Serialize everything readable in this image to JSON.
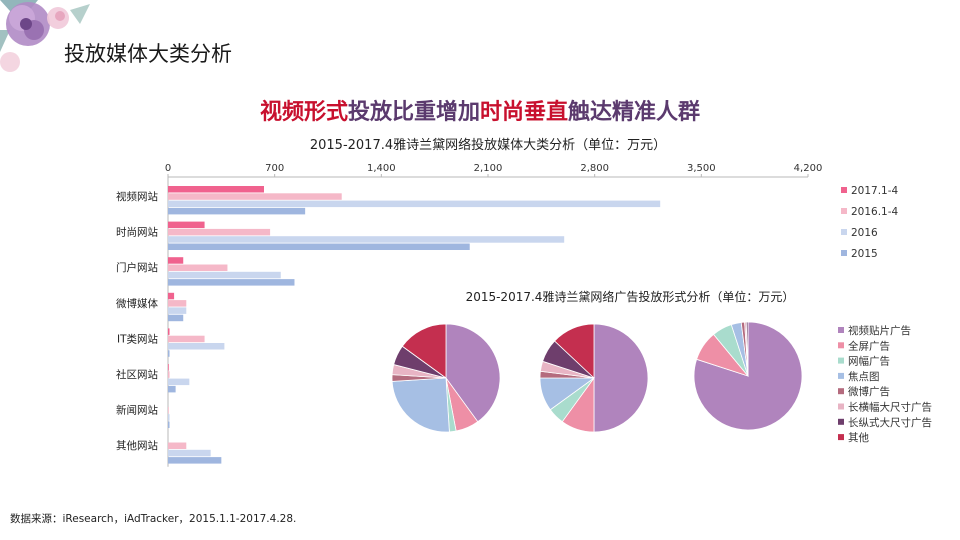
{
  "page": {
    "title": "投放媒体大类分析",
    "headline_red_1": "视频形式",
    "headline_1": "投放比重增加",
    "headline_red_2": "时尚垂直",
    "headline_2": "触达精准人群",
    "source": "数据来源：iResearch，iAdTracker，2015.1.1-2017.4.28."
  },
  "colors": {
    "s2017": "#f0628e",
    "s2016_1_4": "#f5b8c8",
    "s2016": "#c9d6ee",
    "s2015": "#9fb6df",
    "headline": "#5b3a6e",
    "headline_red": "#c8102e"
  },
  "chart_data": [
    {
      "type": "bar",
      "orientation": "horizontal",
      "title": "2015-2017.4雅诗兰黛网络投放媒体大类分析（单位：万元）",
      "categories": [
        "视频网站",
        "时尚网站",
        "门户网站",
        "微博媒体",
        "IT类网站",
        "社区网站",
        "新闻网站",
        "其他网站"
      ],
      "xlim": [
        0,
        4200
      ],
      "xticks": [
        0,
        700,
        1400,
        2100,
        2800,
        3500,
        4200
      ],
      "xtick_labels": [
        "0",
        "700",
        "1,400",
        "2,100",
        "2,800",
        "3,500",
        "4,200"
      ],
      "legend_position": "right",
      "series": [
        {
          "name": "2017.1-4",
          "color": "#f0628e",
          "values": [
            630,
            240,
            100,
            40,
            10,
            5,
            0,
            0
          ]
        },
        {
          "name": "2016.1-4",
          "color": "#f5b8c8",
          "values": [
            1140,
            670,
            390,
            120,
            240,
            10,
            5,
            120
          ]
        },
        {
          "name": "2016",
          "color": "#c9d6ee",
          "values": [
            3230,
            2600,
            740,
            120,
            370,
            140,
            10,
            280
          ]
        },
        {
          "name": "2015",
          "color": "#9fb6df",
          "values": [
            900,
            1980,
            830,
            100,
            10,
            50,
            10,
            350
          ]
        }
      ]
    },
    {
      "type": "pie",
      "title": "2015-2017.4雅诗兰黛网络广告投放形式分析（单位：万元）",
      "legend_position": "right",
      "categories": [
        "视频贴片广告",
        "全屏广告",
        "网幅广告",
        "焦点图",
        "微博广告",
        "长横幅大尺寸广告",
        "长纵式大尺寸广告",
        "其他"
      ],
      "colors": [
        "#b084bd",
        "#ee8fa6",
        "#a9dccd",
        "#a6bfe4",
        "#b46b7e",
        "#e8b4c4",
        "#6e3e6c",
        "#c42f4f"
      ],
      "pies": [
        {
          "values": [
            40,
            7,
            2,
            25,
            2,
            3,
            6,
            15
          ]
        },
        {
          "values": [
            50,
            10,
            5,
            10,
            2,
            3,
            7,
            13
          ]
        },
        {
          "values": [
            80,
            9,
            6,
            3,
            1,
            0.5,
            0.5,
            0
          ]
        }
      ]
    }
  ]
}
